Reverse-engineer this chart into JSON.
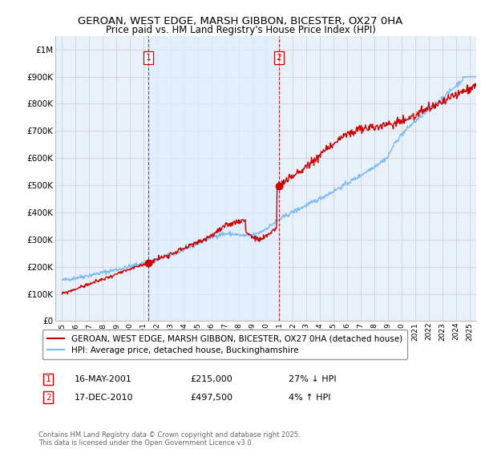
{
  "title": "GEROAN, WEST EDGE, MARSH GIBBON, BICESTER, OX27 0HA",
  "subtitle": "Price paid vs. HM Land Registry's House Price Index (HPI)",
  "legend_line1": "GEROAN, WEST EDGE, MARSH GIBBON, BICESTER, OX27 0HA (detached house)",
  "legend_line2": "HPI: Average price, detached house, Buckinghamshire",
  "footer": "Contains HM Land Registry data © Crown copyright and database right 2025.\nThis data is licensed under the Open Government Licence v3.0.",
  "sale1_date": "16-MAY-2001",
  "sale1_price": "£215,000",
  "sale1_hpi": "27% ↓ HPI",
  "sale2_date": "17-DEC-2010",
  "sale2_price": "£497,500",
  "sale2_hpi": "4% ↑ HPI",
  "sale1_year": 2001.37,
  "sale1_value": 215000,
  "sale2_year": 2010.96,
  "sale2_value": 497500,
  "hpi_color": "#7ab8f5",
  "price_color": "#cc0000",
  "vline_color": "#cc0000",
  "shade_color": "#ddeeff",
  "grid_color": "#cccccc",
  "bg_color": "#e8f0fa",
  "ylim_max": 1050000,
  "ylim_min": 0,
  "xlim_min": 1994.5,
  "xlim_max": 2025.5
}
